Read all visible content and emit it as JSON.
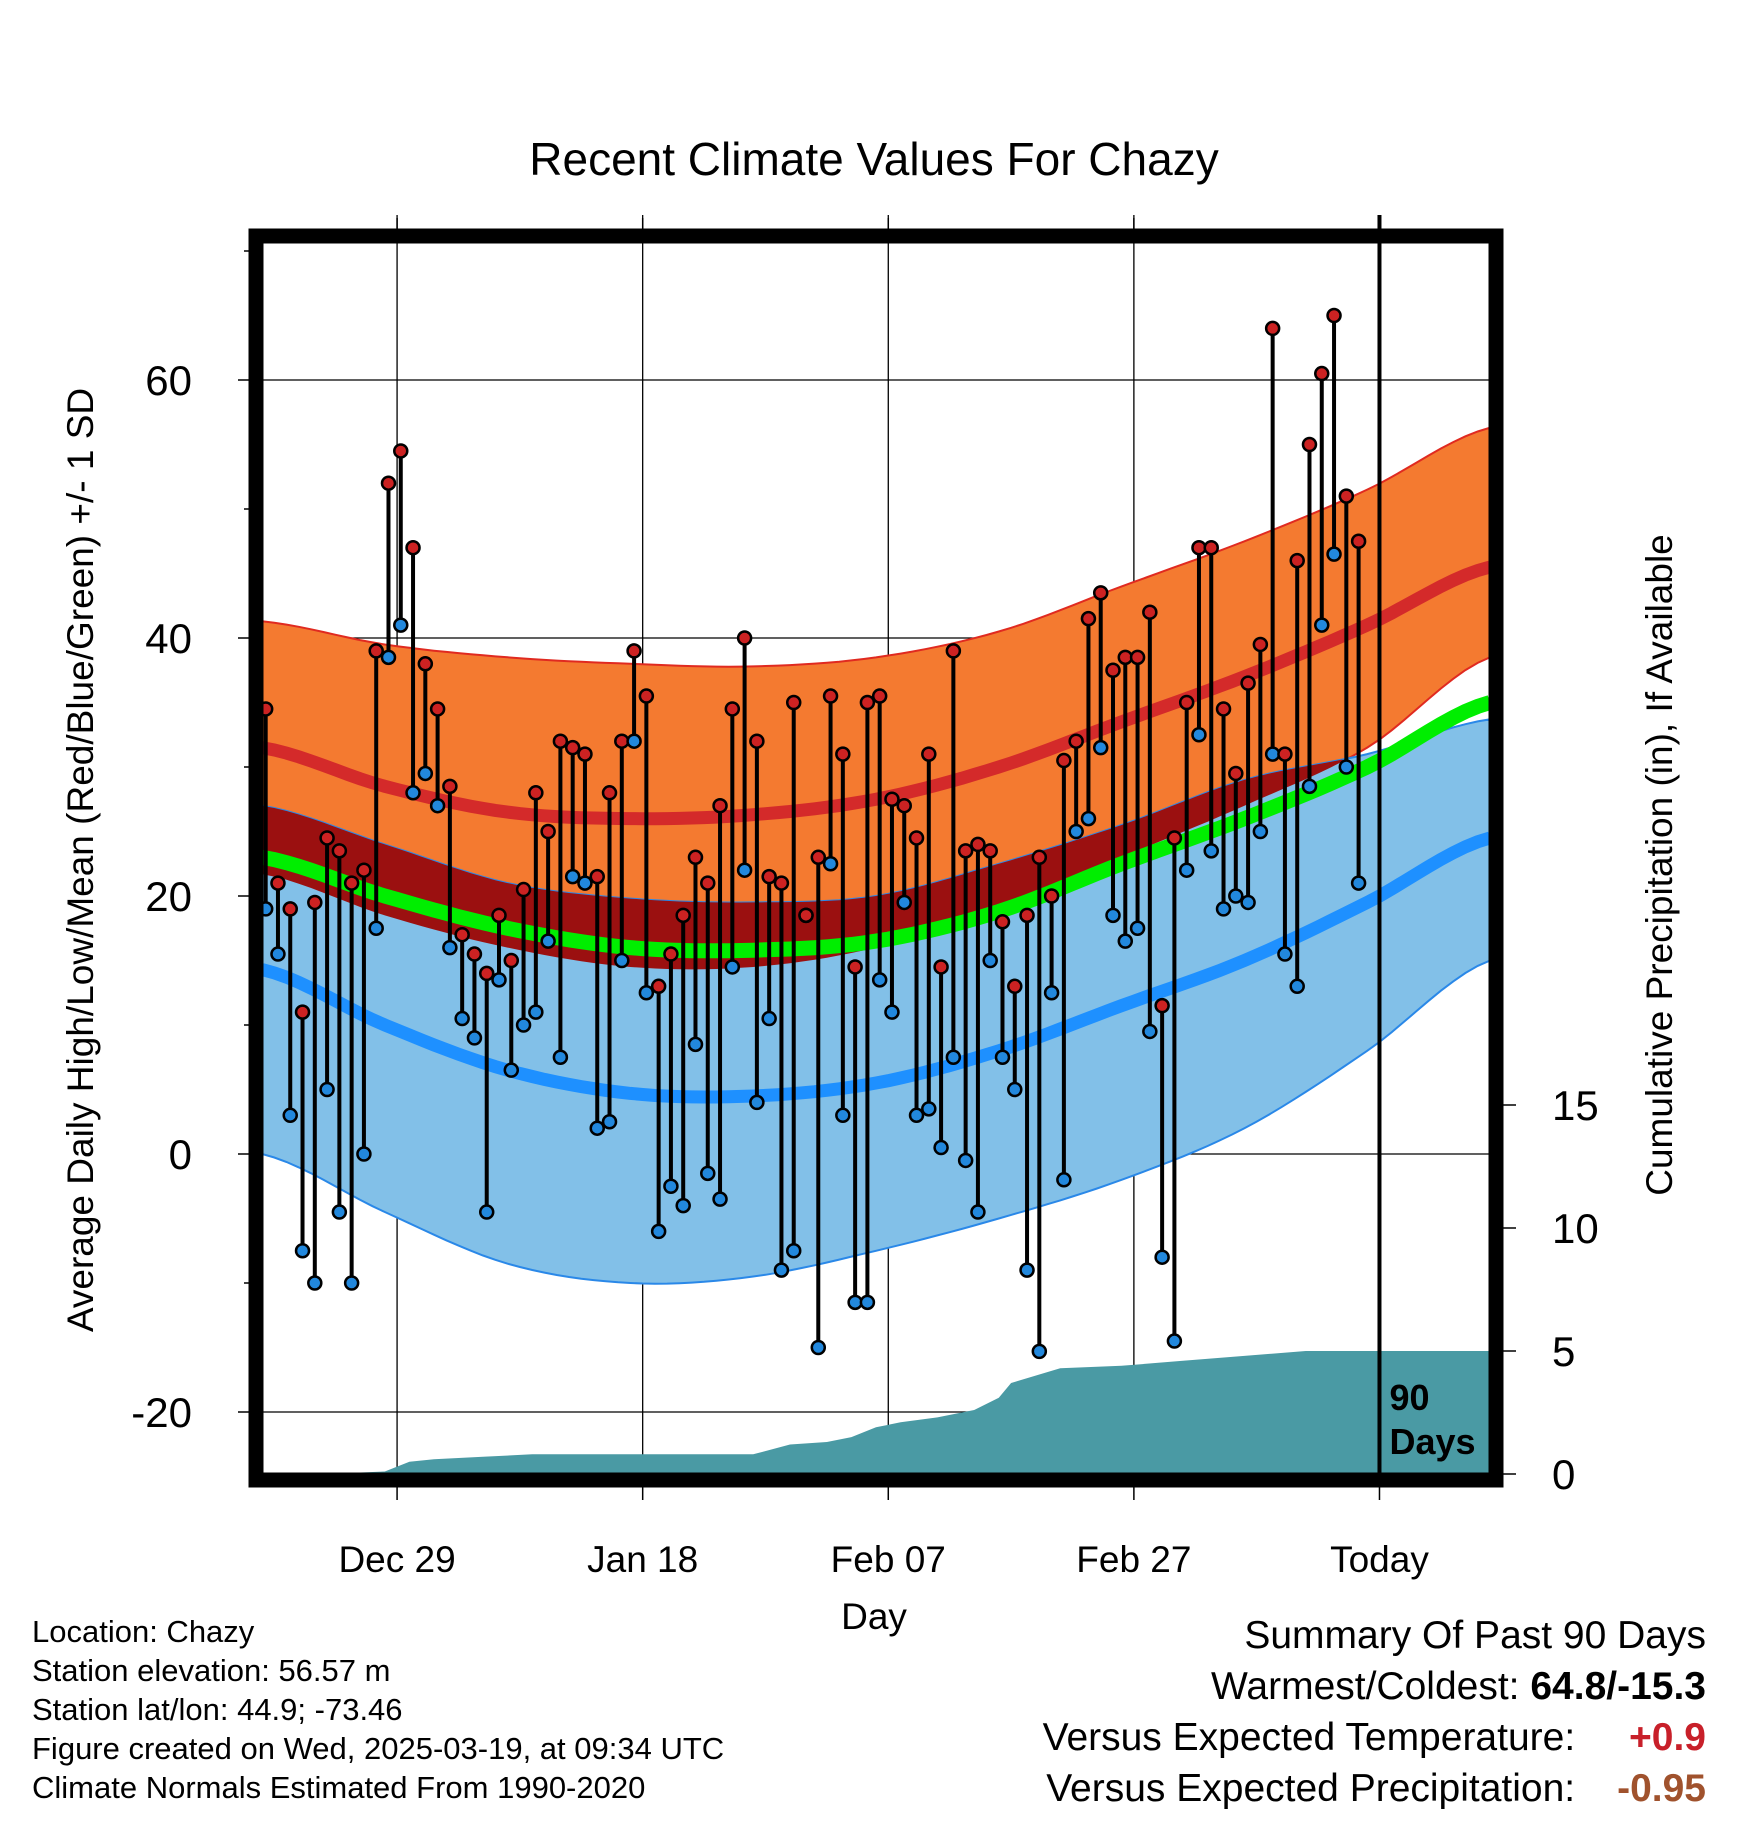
{
  "chart_data": {
    "type": "line",
    "title": "Recent Climate Values For Chazy",
    "xlabel": "Day",
    "ylabel": "Average Daily High/Low/Mean (Red/Blue/Green) +/- 1 SD",
    "y2label": "Cumulative Precipitation (in), If Available",
    "x_ticks": [
      "Dec 29",
      "Jan 18",
      "Feb 07",
      "Feb 27",
      "Today"
    ],
    "x_tick_days": [
      11,
      31,
      51,
      71,
      91
    ],
    "y_ticks": [
      60,
      40,
      20,
      0,
      -20
    ],
    "y2_ticks": [
      15,
      10,
      5,
      0
    ],
    "ylim": [
      -25,
      70
    ],
    "y2lim": [
      0,
      60
    ],
    "today_day": 91,
    "today_label": "90 Days",
    "grid": true,
    "normals": {
      "day": [
        0,
        10,
        20,
        30,
        40,
        50,
        60,
        70,
        80,
        90,
        100
      ],
      "high_mean": [
        31.5,
        28.5,
        26.5,
        26,
        26.3,
        27.5,
        30,
        33.5,
        37,
        41,
        45.5
      ],
      "high_upper": [
        41.3,
        39.5,
        38.5,
        38,
        37.8,
        38.5,
        40.5,
        44,
        47.5,
        51.5,
        56.3
      ],
      "high_lower": [
        21.7,
        18.5,
        16,
        14.5,
        14.5,
        16,
        19,
        23,
        27,
        31.5,
        38.5
      ],
      "low_mean": [
        14.3,
        10,
        6.5,
        4.7,
        4.5,
        5.5,
        8,
        11.5,
        15,
        19.5,
        24.5
      ],
      "low_upper": [
        27,
        24,
        21,
        19.8,
        19.5,
        20,
        22.5,
        25.5,
        29,
        31,
        33.7
      ],
      "low_lower": [
        0,
        -4.5,
        -8.5,
        -10,
        -9.5,
        -7.5,
        -5,
        -2,
        2,
        8,
        15
      ],
      "avg_mean": [
        23,
        20,
        17.5,
        16,
        15.8,
        16.5,
        18.8,
        22.5,
        26,
        30,
        35
      ]
    },
    "daily_high": [
      34.5,
      21,
      19,
      11,
      19.5,
      24.5,
      23.5,
      21,
      22,
      39,
      52,
      54.5,
      47,
      38,
      34.5,
      28.5,
      17,
      15.5,
      14,
      18.5,
      15,
      20.5,
      28,
      25,
      32,
      31.5,
      31,
      21.5,
      28,
      32,
      39,
      35.5,
      13,
      15.5,
      18.5,
      23,
      21,
      27,
      34.5,
      40,
      32,
      21.5,
      21,
      35,
      18.5,
      23,
      35.5,
      31,
      14.5,
      35,
      35.5,
      27.5,
      27,
      24.5,
      31,
      14.5,
      39,
      23.5,
      24,
      23.5,
      18,
      13,
      18.5,
      23,
      20,
      30.5,
      32,
      41.5,
      43.5,
      37.5,
      38.5,
      38.5,
      42,
      11.5,
      24.5,
      35,
      47,
      47,
      34.5,
      29.5,
      36.5,
      39.5,
      64,
      31,
      46,
      55,
      60.5,
      65,
      51,
      47.5
    ],
    "daily_low": [
      19,
      15.5,
      3,
      -7.5,
      -10,
      5,
      -4.5,
      -10,
      0,
      17.5,
      38.5,
      41,
      28,
      29.5,
      27,
      16,
      10.5,
      9,
      -4.5,
      13.5,
      6.5,
      10,
      11,
      16.5,
      7.5,
      21.5,
      21,
      2,
      2.5,
      15,
      32,
      12.5,
      -6,
      -2.5,
      -4,
      8.5,
      -1.5,
      -3.5,
      14.5,
      22,
      4,
      10.5,
      -9,
      -7.5,
      18.5,
      -15,
      22.5,
      3,
      -11.5,
      -11.5,
      13.5,
      11,
      19.5,
      3,
      3.5,
      0.5,
      7.5,
      -0.5,
      -4.5,
      15,
      7.5,
      5,
      -9,
      -15.3,
      12.5,
      -2,
      25,
      26,
      31.5,
      18.5,
      16.5,
      17.5,
      9.5,
      -8,
      -14.5,
      22,
      32.5,
      23.5,
      19,
      20,
      19.5,
      25,
      31,
      15.5,
      13,
      28.5,
      41,
      46.5,
      30,
      21
    ],
    "precip_cumulative": {
      "day": [
        0,
        5,
        10,
        12,
        14,
        18,
        22,
        30,
        40,
        43,
        46,
        48,
        50,
        52,
        55,
        58,
        60,
        61,
        65,
        70,
        75,
        80,
        85,
        88,
        100
      ],
      "value": [
        0,
        0,
        0.1,
        0.5,
        0.6,
        0.7,
        0.8,
        0.8,
        0.8,
        1.2,
        1.3,
        1.5,
        1.9,
        2.1,
        2.3,
        2.6,
        3.1,
        3.7,
        4.3,
        4.4,
        4.6,
        4.8,
        5,
        5,
        5
      ]
    }
  },
  "footer": {
    "location": "Location: Chazy",
    "elevation": "Station elevation: 56.57 m",
    "latlon": "Station lat/lon: 44.9; -73.46",
    "created": "Figure created on Wed, 2025-03-19, at 09:34 UTC",
    "normals": "Climate Normals Estimated From 1990-2020"
  },
  "summary": {
    "title": "Summary Of Past 90 Days",
    "warmest_label": "Warmest/Coldest:",
    "warmest_value": "64.8/-15.3",
    "temp_label": "Versus Expected Temperature:",
    "temp_value": "+0.9",
    "precip_label": "Versus Expected Precipitation:",
    "precip_value": "-0.95",
    "colors": {
      "temp": "#c8202a",
      "precip": "#a0522d"
    }
  },
  "colors": {
    "high_band": "#f47a30",
    "high_mean": "#d42a2a",
    "low_band": "#82c0e8",
    "low_mean": "#1e90ff",
    "overlap": "#9b1010",
    "avg_mean": "#00ee00",
    "precip": "#4a9aa4",
    "high_dot": "#cc2222",
    "low_dot": "#2288dd"
  }
}
